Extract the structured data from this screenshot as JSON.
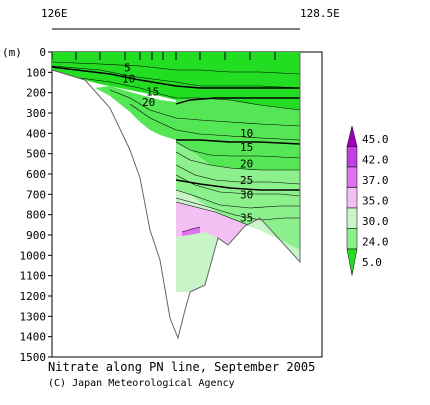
{
  "chart_data": {
    "type": "heatmap",
    "title": "Nitrate along PN line, September 2005",
    "credit": "(C) Japan Meteorological Agency",
    "ylabel": "(m)",
    "xlabel": "",
    "x_ticks": [
      "126E",
      "128.5E"
    ],
    "y_ticks": [
      0,
      100,
      200,
      300,
      400,
      500,
      600,
      700,
      800,
      900,
      1000,
      1100,
      1200,
      1300,
      1400,
      1500
    ],
    "ylim": [
      0,
      1500
    ],
    "y_inverted": true,
    "legend": {
      "placement": "right",
      "levels": [
        "45.0",
        "42.0",
        "37.0",
        "35.0",
        "30.0",
        "24.0",
        "5.0"
      ],
      "colors": [
        "#a000c0",
        "#c040e0",
        "#e070f0",
        "#f4c0f4",
        "#c8f4c8",
        "#8cf08c",
        "#22dd22"
      ]
    },
    "contour_labels": [
      {
        "text": "5",
        "depth": 75
      },
      {
        "text": "10",
        "depth": 130
      },
      {
        "text": "15",
        "depth": 195
      },
      {
        "text": "20",
        "depth": 245
      },
      {
        "text": "10",
        "depth": 398
      },
      {
        "text": "15",
        "depth": 468
      },
      {
        "text": "20",
        "depth": 548
      },
      {
        "text": "25",
        "depth": 630
      },
      {
        "text": "30",
        "depth": 700
      },
      {
        "text": "35",
        "depth": 815
      }
    ]
  }
}
